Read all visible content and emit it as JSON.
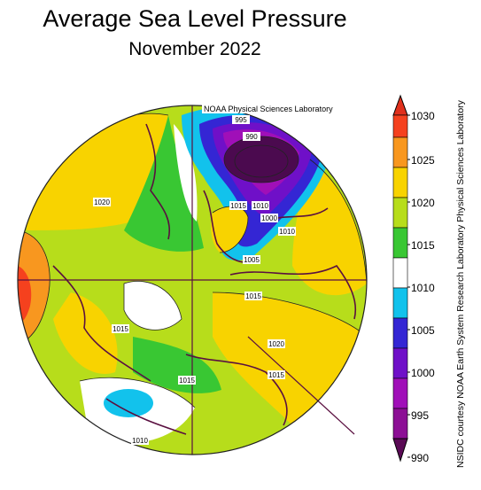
{
  "header": {
    "title": "Average Sea Level Pressure",
    "subtitle": "November 2022"
  },
  "map": {
    "lab_credit": "NOAA Physical Sciences Laboratory",
    "side_credit": "NSIDC courtesy NOAA Earth System Research Laboratory Physical Sciences Laboratory",
    "contour_labels": [
      "995",
      "990",
      "1015",
      "1010",
      "1000",
      "1020",
      "1010",
      "1005",
      "1015",
      "1015",
      "1020",
      "1015",
      "1015",
      "1010"
    ]
  },
  "colorbar": {
    "ticks": [
      "1030",
      "1025",
      "1020",
      "1015",
      "1010",
      "1005",
      "1000",
      "995",
      "990"
    ],
    "colors": [
      "#f5411e",
      "#f8971f",
      "#f8d300",
      "#b7dd1b",
      "#39c733",
      "#ffffff",
      "#12c2ec",
      "#3426d4",
      "#6f10c8",
      "#a00fb8",
      "#6e0a5f"
    ],
    "unit_levels": [
      1030,
      1025,
      1020,
      1015,
      1010,
      1005,
      1000,
      995,
      990
    ]
  },
  "colors": {
    "land": "#5a1040",
    "low_pressure_core": "#4b0a4f"
  }
}
